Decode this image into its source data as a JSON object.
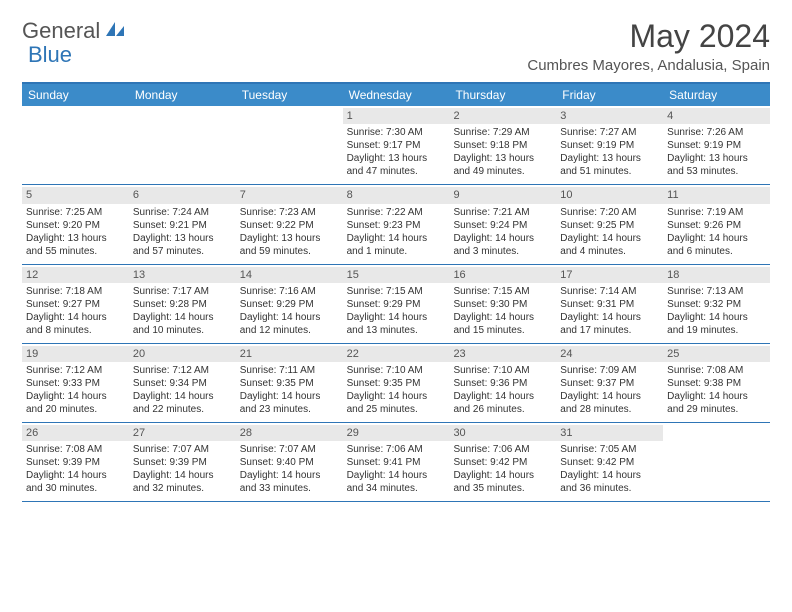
{
  "logo": {
    "part1": "General",
    "part2": "Blue"
  },
  "title": "May 2024",
  "location": "Cumbres Mayores, Andalusia, Spain",
  "colors": {
    "header_bg": "#3b8bc9",
    "border": "#2e75b6",
    "daynum_bg": "#e8e8e8",
    "text": "#333333",
    "title_text": "#444444"
  },
  "day_headers": [
    "Sunday",
    "Monday",
    "Tuesday",
    "Wednesday",
    "Thursday",
    "Friday",
    "Saturday"
  ],
  "weeks": [
    [
      {
        "n": "",
        "empty": true
      },
      {
        "n": "",
        "empty": true
      },
      {
        "n": "",
        "empty": true
      },
      {
        "n": "1",
        "sr": "7:30 AM",
        "ss": "9:17 PM",
        "dl": "13 hours and 47 minutes."
      },
      {
        "n": "2",
        "sr": "7:29 AM",
        "ss": "9:18 PM",
        "dl": "13 hours and 49 minutes."
      },
      {
        "n": "3",
        "sr": "7:27 AM",
        "ss": "9:19 PM",
        "dl": "13 hours and 51 minutes."
      },
      {
        "n": "4",
        "sr": "7:26 AM",
        "ss": "9:19 PM",
        "dl": "13 hours and 53 minutes."
      }
    ],
    [
      {
        "n": "5",
        "sr": "7:25 AM",
        "ss": "9:20 PM",
        "dl": "13 hours and 55 minutes."
      },
      {
        "n": "6",
        "sr": "7:24 AM",
        "ss": "9:21 PM",
        "dl": "13 hours and 57 minutes."
      },
      {
        "n": "7",
        "sr": "7:23 AM",
        "ss": "9:22 PM",
        "dl": "13 hours and 59 minutes."
      },
      {
        "n": "8",
        "sr": "7:22 AM",
        "ss": "9:23 PM",
        "dl": "14 hours and 1 minute."
      },
      {
        "n": "9",
        "sr": "7:21 AM",
        "ss": "9:24 PM",
        "dl": "14 hours and 3 minutes."
      },
      {
        "n": "10",
        "sr": "7:20 AM",
        "ss": "9:25 PM",
        "dl": "14 hours and 4 minutes."
      },
      {
        "n": "11",
        "sr": "7:19 AM",
        "ss": "9:26 PM",
        "dl": "14 hours and 6 minutes."
      }
    ],
    [
      {
        "n": "12",
        "sr": "7:18 AM",
        "ss": "9:27 PM",
        "dl": "14 hours and 8 minutes."
      },
      {
        "n": "13",
        "sr": "7:17 AM",
        "ss": "9:28 PM",
        "dl": "14 hours and 10 minutes."
      },
      {
        "n": "14",
        "sr": "7:16 AM",
        "ss": "9:29 PM",
        "dl": "14 hours and 12 minutes."
      },
      {
        "n": "15",
        "sr": "7:15 AM",
        "ss": "9:29 PM",
        "dl": "14 hours and 13 minutes."
      },
      {
        "n": "16",
        "sr": "7:15 AM",
        "ss": "9:30 PM",
        "dl": "14 hours and 15 minutes."
      },
      {
        "n": "17",
        "sr": "7:14 AM",
        "ss": "9:31 PM",
        "dl": "14 hours and 17 minutes."
      },
      {
        "n": "18",
        "sr": "7:13 AM",
        "ss": "9:32 PM",
        "dl": "14 hours and 19 minutes."
      }
    ],
    [
      {
        "n": "19",
        "sr": "7:12 AM",
        "ss": "9:33 PM",
        "dl": "14 hours and 20 minutes."
      },
      {
        "n": "20",
        "sr": "7:12 AM",
        "ss": "9:34 PM",
        "dl": "14 hours and 22 minutes."
      },
      {
        "n": "21",
        "sr": "7:11 AM",
        "ss": "9:35 PM",
        "dl": "14 hours and 23 minutes."
      },
      {
        "n": "22",
        "sr": "7:10 AM",
        "ss": "9:35 PM",
        "dl": "14 hours and 25 minutes."
      },
      {
        "n": "23",
        "sr": "7:10 AM",
        "ss": "9:36 PM",
        "dl": "14 hours and 26 minutes."
      },
      {
        "n": "24",
        "sr": "7:09 AM",
        "ss": "9:37 PM",
        "dl": "14 hours and 28 minutes."
      },
      {
        "n": "25",
        "sr": "7:08 AM",
        "ss": "9:38 PM",
        "dl": "14 hours and 29 minutes."
      }
    ],
    [
      {
        "n": "26",
        "sr": "7:08 AM",
        "ss": "9:39 PM",
        "dl": "14 hours and 30 minutes."
      },
      {
        "n": "27",
        "sr": "7:07 AM",
        "ss": "9:39 PM",
        "dl": "14 hours and 32 minutes."
      },
      {
        "n": "28",
        "sr": "7:07 AM",
        "ss": "9:40 PM",
        "dl": "14 hours and 33 minutes."
      },
      {
        "n": "29",
        "sr": "7:06 AM",
        "ss": "9:41 PM",
        "dl": "14 hours and 34 minutes."
      },
      {
        "n": "30",
        "sr": "7:06 AM",
        "ss": "9:42 PM",
        "dl": "14 hours and 35 minutes."
      },
      {
        "n": "31",
        "sr": "7:05 AM",
        "ss": "9:42 PM",
        "dl": "14 hours and 36 minutes."
      },
      {
        "n": "",
        "empty": true
      }
    ]
  ],
  "labels": {
    "sunrise": "Sunrise:",
    "sunset": "Sunset:",
    "daylight": "Daylight:"
  }
}
